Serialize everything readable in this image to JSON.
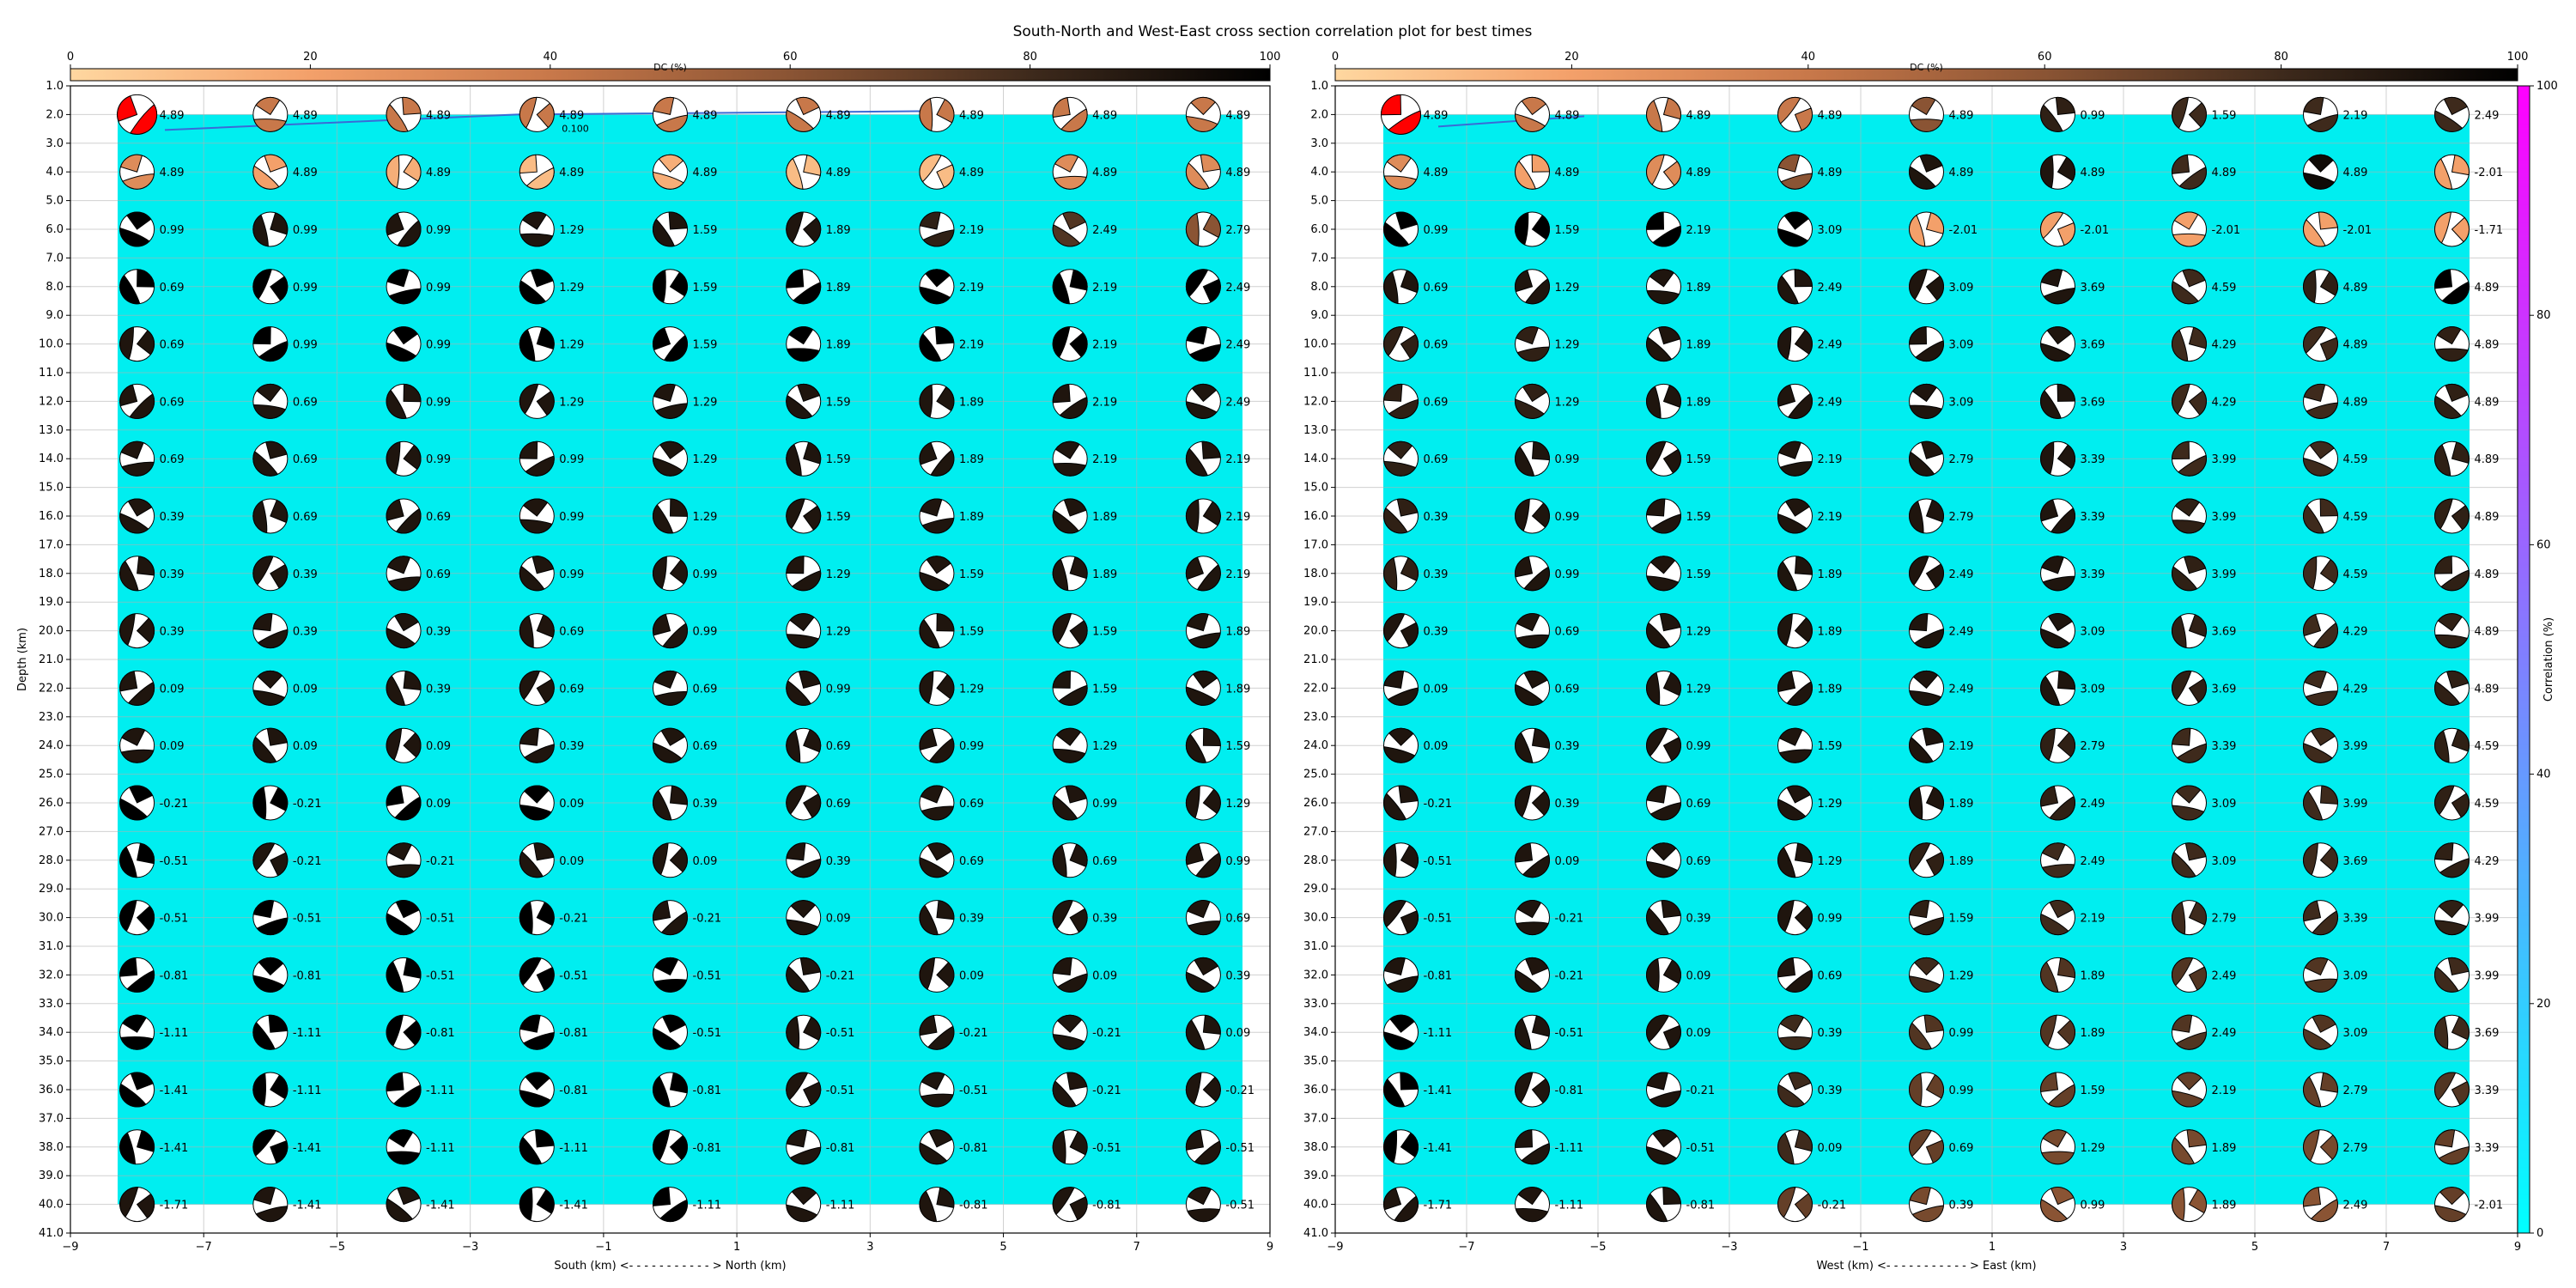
{
  "title": "South-North and West-East cross section correlation plot for best times",
  "dc_colorbar": {
    "label": "DC (%)",
    "ticks": [
      "0",
      "20",
      "40",
      "60",
      "80",
      "100"
    ],
    "colors": [
      "#ffd7a0",
      "#f3a06a",
      "#c8784a",
      "#8a5434",
      "#3e2a1c",
      "#000000"
    ]
  },
  "corr_colorbar": {
    "label": "Correlation (%)",
    "ticks": [
      "0",
      "20",
      "40",
      "60",
      "80",
      "100"
    ],
    "colors": [
      "#00ffff",
      "#ff00ff"
    ]
  },
  "contour_label": "0.100",
  "depth_label": "Depth (km)",
  "depth_ticks": [
    "1.0",
    "2.0",
    "3.0",
    "4.0",
    "5.0",
    "6.0",
    "7.0",
    "8.0",
    "9.0",
    "10.0",
    "11.0",
    "12.0",
    "13.0",
    "14.0",
    "15.0",
    "16.0",
    "17.0",
    "18.0",
    "19.0",
    "20.0",
    "21.0",
    "22.0",
    "23.0",
    "24.0",
    "25.0",
    "26.0",
    "27.0",
    "28.0",
    "29.0",
    "30.0",
    "31.0",
    "32.0",
    "33.0",
    "34.0",
    "35.0",
    "36.0",
    "37.0",
    "38.0",
    "39.0",
    "40.0",
    "41.0"
  ],
  "x_ticks": [
    "−9",
    "−7",
    "−5",
    "−3",
    "−1",
    "1",
    "3",
    "5",
    "7",
    "9"
  ],
  "chart_data": [
    {
      "type": "scatter",
      "title": "South-North and West-East cross section correlation plot for best times",
      "xlabel": "South (km) <- - - - - - - - - - - > North (km)",
      "ylabel": "Depth (km)",
      "xlim": [
        -9,
        9
      ],
      "ylim": [
        41,
        1
      ],
      "x": [
        -8,
        -6,
        -4,
        -2,
        0,
        2,
        4,
        6,
        8
      ],
      "depths": [
        2,
        4,
        6,
        8,
        10,
        12,
        14,
        16,
        18,
        20,
        22,
        24,
        26,
        28,
        30,
        32,
        34,
        36,
        38,
        40
      ],
      "grid": true,
      "values": [
        [
          "4.89",
          "4.89",
          "4.89",
          "4.89",
          "4.89",
          "4.89",
          "4.89",
          "4.89",
          "4.89"
        ],
        [
          "4.89",
          "4.89",
          "4.89",
          "4.89",
          "4.89",
          "4.89",
          "4.89",
          "4.89",
          "4.89"
        ],
        [
          "0.99",
          "0.99",
          "0.99",
          "1.29",
          "1.59",
          "1.89",
          "2.19",
          "2.49",
          "2.79"
        ],
        [
          "0.69",
          "0.99",
          "0.99",
          "1.29",
          "1.59",
          "1.89",
          "2.19",
          "2.19",
          "2.49"
        ],
        [
          "0.69",
          "0.99",
          "0.99",
          "1.29",
          "1.59",
          "1.89",
          "2.19",
          "2.19",
          "2.49"
        ],
        [
          "0.69",
          "0.69",
          "0.99",
          "1.29",
          "1.29",
          "1.59",
          "1.89",
          "2.19",
          "2.49"
        ],
        [
          "0.69",
          "0.69",
          "0.99",
          "0.99",
          "1.29",
          "1.59",
          "1.89",
          "2.19",
          "2.19"
        ],
        [
          "0.39",
          "0.69",
          "0.69",
          "0.99",
          "1.29",
          "1.59",
          "1.89",
          "1.89",
          "2.19"
        ],
        [
          "0.39",
          "0.39",
          "0.69",
          "0.99",
          "0.99",
          "1.29",
          "1.59",
          "1.89",
          "2.19"
        ],
        [
          "0.39",
          "0.39",
          "0.39",
          "0.69",
          "0.99",
          "1.29",
          "1.59",
          "1.59",
          "1.89"
        ],
        [
          "0.09",
          "0.09",
          "0.39",
          "0.69",
          "0.69",
          "0.99",
          "1.29",
          "1.59",
          "1.89"
        ],
        [
          "0.09",
          "0.09",
          "0.09",
          "0.39",
          "0.69",
          "0.69",
          "0.99",
          "1.29",
          "1.59"
        ],
        [
          "-0.21",
          "-0.21",
          "0.09",
          "0.09",
          "0.39",
          "0.69",
          "0.69",
          "0.99",
          "1.29"
        ],
        [
          "-0.51",
          "-0.21",
          "-0.21",
          "0.09",
          "0.09",
          "0.39",
          "0.69",
          "0.69",
          "0.99"
        ],
        [
          "-0.51",
          "-0.51",
          "-0.51",
          "-0.21",
          "-0.21",
          "0.09",
          "0.39",
          "0.39",
          "0.69"
        ],
        [
          "-0.81",
          "-0.81",
          "-0.51",
          "-0.51",
          "-0.51",
          "-0.21",
          "0.09",
          "0.09",
          "0.39"
        ],
        [
          "-1.11",
          "-1.11",
          "-0.81",
          "-0.81",
          "-0.51",
          "-0.51",
          "-0.21",
          "-0.21",
          "0.09"
        ],
        [
          "-1.41",
          "-1.11",
          "-1.11",
          "-0.81",
          "-0.81",
          "-0.51",
          "-0.51",
          "-0.21",
          "-0.21"
        ],
        [
          "-1.41",
          "-1.41",
          "-1.11",
          "-1.11",
          "-0.81",
          "-0.81",
          "-0.81",
          "-0.51",
          "-0.51"
        ],
        [
          "-1.71",
          "-1.41",
          "-1.41",
          "-1.41",
          "-1.11",
          "-1.11",
          "-0.81",
          "-0.81",
          "-0.51"
        ]
      ],
      "dc_percent": [
        [
          20,
          40,
          40,
          40,
          40,
          40,
          40,
          40,
          40
        ],
        [
          30,
          20,
          15,
          10,
          15,
          10,
          10,
          30,
          30
        ],
        [
          100,
          90,
          90,
          90,
          90,
          90,
          85,
          75,
          60
        ],
        [
          100,
          100,
          100,
          100,
          100,
          100,
          100,
          100,
          100
        ],
        [
          90,
          100,
          100,
          100,
          100,
          100,
          100,
          100,
          100
        ],
        [
          90,
          90,
          90,
          90,
          90,
          90,
          90,
          90,
          90
        ],
        [
          90,
          90,
          90,
          90,
          90,
          90,
          90,
          90,
          90
        ],
        [
          90,
          90,
          90,
          90,
          90,
          90,
          90,
          90,
          90
        ],
        [
          90,
          90,
          90,
          90,
          90,
          90,
          90,
          90,
          90
        ],
        [
          90,
          90,
          90,
          90,
          90,
          90,
          90,
          90,
          90
        ],
        [
          90,
          90,
          90,
          90,
          90,
          90,
          90,
          90,
          90
        ],
        [
          90,
          90,
          90,
          90,
          90,
          90,
          90,
          90,
          90
        ],
        [
          100,
          100,
          100,
          100,
          90,
          90,
          90,
          90,
          90
        ],
        [
          100,
          90,
          90,
          90,
          90,
          90,
          90,
          90,
          90
        ],
        [
          100,
          100,
          100,
          100,
          90,
          90,
          90,
          90,
          90
        ],
        [
          100,
          100,
          100,
          100,
          100,
          90,
          90,
          90,
          90
        ],
        [
          100,
          100,
          100,
          100,
          100,
          90,
          90,
          90,
          90
        ],
        [
          100,
          100,
          100,
          100,
          100,
          90,
          90,
          90,
          90
        ],
        [
          100,
          100,
          100,
          100,
          100,
          90,
          90,
          90,
          90
        ],
        [
          90,
          90,
          90,
          100,
          100,
          90,
          90,
          90,
          90
        ]
      ],
      "correlation_percent_max": 100
    },
    {
      "type": "scatter",
      "xlabel": "West (km) <- - - - - - - - - - - > East (km)",
      "ylabel": "Depth (km)",
      "xlim": [
        -9,
        9
      ],
      "ylim": [
        41,
        1
      ],
      "x": [
        -8,
        -6,
        -4,
        -2,
        0,
        2,
        4,
        6,
        8
      ],
      "depths": [
        2,
        4,
        6,
        8,
        10,
        12,
        14,
        16,
        18,
        20,
        22,
        24,
        26,
        28,
        30,
        32,
        34,
        36,
        38,
        40
      ],
      "grid": true,
      "values": [
        [
          "4.89",
          "4.89",
          "4.89",
          "4.89",
          "4.89",
          "0.99",
          "1.59",
          "2.19",
          "2.49"
        ],
        [
          "4.89",
          "4.89",
          "4.89",
          "4.89",
          "4.89",
          "4.89",
          "4.89",
          "4.89",
          "-2.01"
        ],
        [
          "0.99",
          "1.59",
          "2.19",
          "3.09",
          "-2.01",
          "-2.01",
          "-2.01",
          "-2.01",
          "-1.71"
        ],
        [
          "0.69",
          "1.29",
          "1.89",
          "2.49",
          "3.09",
          "3.69",
          "4.59",
          "4.89",
          "4.89"
        ],
        [
          "0.69",
          "1.29",
          "1.89",
          "2.49",
          "3.09",
          "3.69",
          "4.29",
          "4.89",
          "4.89"
        ],
        [
          "0.69",
          "1.29",
          "1.89",
          "2.49",
          "3.09",
          "3.69",
          "4.29",
          "4.89",
          "4.89"
        ],
        [
          "0.69",
          "0.99",
          "1.59",
          "2.19",
          "2.79",
          "3.39",
          "3.99",
          "4.59",
          "4.89"
        ],
        [
          "0.39",
          "0.99",
          "1.59",
          "2.19",
          "2.79",
          "3.39",
          "3.99",
          "4.59",
          "4.89"
        ],
        [
          "0.39",
          "0.99",
          "1.59",
          "1.89",
          "2.49",
          "3.39",
          "3.99",
          "4.59",
          "4.89"
        ],
        [
          "0.39",
          "0.69",
          "1.29",
          "1.89",
          "2.49",
          "3.09",
          "3.69",
          "4.29",
          "4.89"
        ],
        [
          "0.09",
          "0.69",
          "1.29",
          "1.89",
          "2.49",
          "3.09",
          "3.69",
          "4.29",
          "4.89"
        ],
        [
          "0.09",
          "0.39",
          "0.99",
          "1.59",
          "2.19",
          "2.79",
          "3.39",
          "3.99",
          "4.59"
        ],
        [
          "-0.21",
          "0.39",
          "0.69",
          "1.29",
          "1.89",
          "2.49",
          "3.09",
          "3.99",
          "4.59"
        ],
        [
          "-0.51",
          "0.09",
          "0.69",
          "1.29",
          "1.89",
          "2.49",
          "3.09",
          "3.69",
          "4.29"
        ],
        [
          "-0.51",
          "-0.21",
          "0.39",
          "0.99",
          "1.59",
          "2.19",
          "2.79",
          "3.39",
          "3.99"
        ],
        [
          "-0.81",
          "-0.21",
          "0.09",
          "0.69",
          "1.29",
          "1.89",
          "2.49",
          "3.09",
          "3.99"
        ],
        [
          "-1.11",
          "-0.51",
          "0.09",
          "0.39",
          "0.99",
          "1.89",
          "2.49",
          "3.09",
          "3.69"
        ],
        [
          "-1.41",
          "-0.81",
          "-0.21",
          "0.39",
          "0.99",
          "1.59",
          "2.19",
          "2.79",
          "3.39"
        ],
        [
          "-1.41",
          "-1.11",
          "-0.51",
          "0.09",
          "0.69",
          "1.29",
          "1.89",
          "2.79",
          "3.39"
        ],
        [
          "-1.71",
          "-1.11",
          "-0.81",
          "-0.21",
          "0.39",
          "0.99",
          "1.89",
          "2.49",
          "-2.01"
        ]
      ],
      "dc_percent": [
        [
          20,
          40,
          40,
          40,
          60,
          85,
          80,
          80,
          80
        ],
        [
          30,
          20,
          30,
          60,
          90,
          90,
          80,
          95,
          20
        ],
        [
          100,
          100,
          100,
          100,
          20,
          20,
          20,
          20,
          20
        ],
        [
          90,
          90,
          90,
          90,
          90,
          90,
          80,
          85,
          100
        ],
        [
          85,
          85,
          90,
          90,
          90,
          90,
          80,
          80,
          85
        ],
        [
          85,
          85,
          90,
          90,
          90,
          90,
          80,
          80,
          85
        ],
        [
          85,
          90,
          90,
          90,
          90,
          90,
          80,
          80,
          85
        ],
        [
          85,
          90,
          90,
          90,
          90,
          90,
          85,
          80,
          85
        ],
        [
          85,
          90,
          90,
          90,
          90,
          90,
          85,
          80,
          85
        ],
        [
          90,
          90,
          90,
          90,
          90,
          90,
          85,
          80,
          85
        ],
        [
          90,
          90,
          90,
          90,
          90,
          90,
          85,
          80,
          85
        ],
        [
          90,
          90,
          90,
          90,
          90,
          85,
          80,
          80,
          85
        ],
        [
          90,
          90,
          90,
          90,
          90,
          85,
          80,
          80,
          85
        ],
        [
          90,
          90,
          90,
          90,
          85,
          80,
          80,
          80,
          85
        ],
        [
          90,
          90,
          90,
          90,
          85,
          80,
          80,
          80,
          85
        ],
        [
          90,
          90,
          90,
          90,
          80,
          75,
          75,
          75,
          80
        ],
        [
          100,
          90,
          90,
          80,
          75,
          75,
          75,
          75,
          80
        ],
        [
          100,
          90,
          90,
          80,
          70,
          70,
          70,
          70,
          75
        ],
        [
          100,
          90,
          90,
          80,
          70,
          65,
          65,
          65,
          70
        ],
        [
          90,
          90,
          90,
          70,
          65,
          60,
          60,
          60,
          70
        ]
      ],
      "correlation_percent_max": 100
    }
  ]
}
